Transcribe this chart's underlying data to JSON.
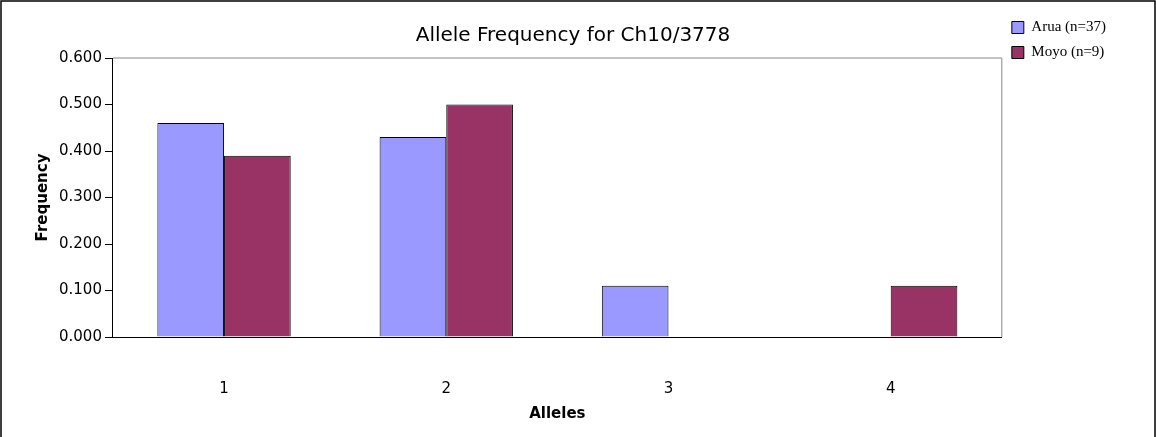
{
  "chart_data": {
    "type": "bar",
    "title": "Allele Frequency for Ch10/3778",
    "xlabel": "Alleles",
    "ylabel": "Frequency",
    "categories": [
      "1",
      "2",
      "3",
      "4"
    ],
    "series": [
      {
        "name": "Arua (n=37)",
        "color": "#9999ff",
        "values": [
          0.46,
          0.43,
          0.11,
          0
        ]
      },
      {
        "name": "Moyo (n=9)",
        "color": "#993366",
        "values": [
          0.39,
          0.5,
          0,
          0.11
        ]
      }
    ],
    "ylim": [
      0,
      0.6
    ],
    "yticks": [
      {
        "value": 0,
        "label": "0.000"
      },
      {
        "value": 0.1,
        "label": "0.100"
      },
      {
        "value": 0.2,
        "label": "0.200"
      },
      {
        "value": 0.3,
        "label": "0.300"
      },
      {
        "value": 0.4,
        "label": "0.400"
      },
      {
        "value": 0.5,
        "label": "0.500"
      },
      {
        "value": 0.6,
        "label": "0.600"
      }
    ],
    "grid": false,
    "legend": "top right"
  }
}
